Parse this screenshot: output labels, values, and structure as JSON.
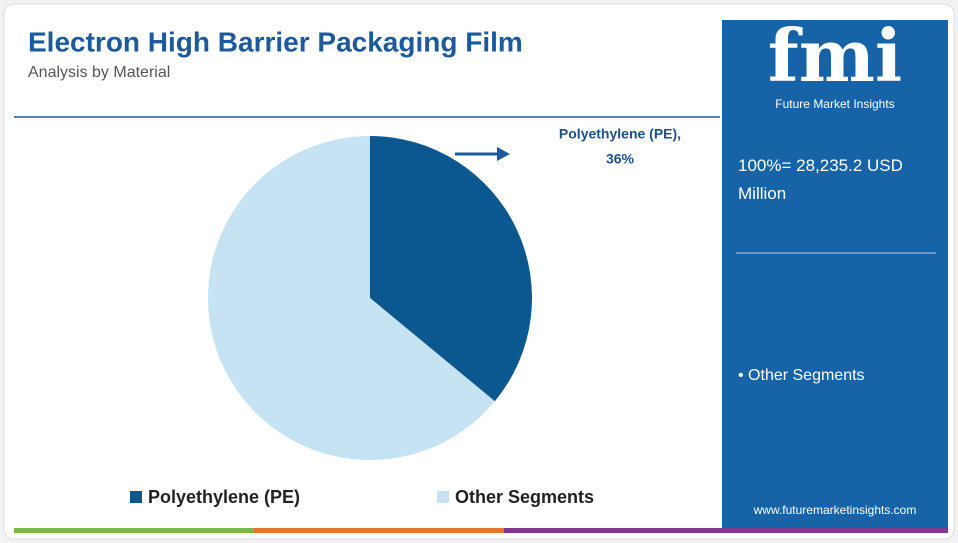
{
  "chart_data": {
    "type": "pie",
    "title": "Electron High Barrier Packaging Film",
    "subtitle": "Analysis by Material",
    "categories": [
      "Polyethylene (PE)",
      "Other Segments"
    ],
    "values": [
      36,
      64
    ],
    "value_labels": [
      "36%",
      null
    ],
    "colors": [
      "#0b5790",
      "#c6e3f3"
    ],
    "annotation": "Polyethylene (PE),"
  },
  "panel": {
    "brand": "fmi",
    "brand_name": "Future Market Insights",
    "total": "100%= 28,235.2 USD Million",
    "segment_note": "• Other Segments",
    "url": "www.futuremarketinsights.com"
  }
}
